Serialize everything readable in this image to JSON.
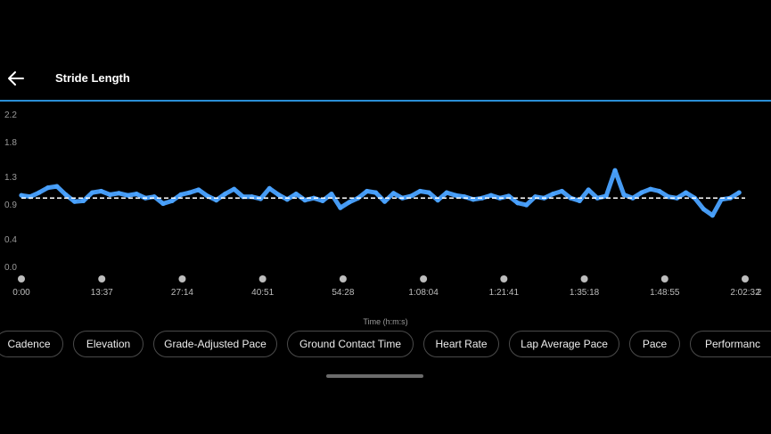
{
  "header": {
    "title": "Stride Length",
    "back_icon": "arrow-left-icon"
  },
  "colors": {
    "accent": "#2a8ed6",
    "series": "#4aa2ff",
    "background": "#000000",
    "average_line": "#ffffff"
  },
  "chart_data": {
    "type": "scatter",
    "title": "",
    "xlabel": "Time (h:m:s)",
    "ylabel": "",
    "ylim": [
      0,
      2.2
    ],
    "y_ticks": [
      "2.2",
      "1.8",
      "1.3",
      "0.9",
      "0.4",
      "0.0"
    ],
    "x_ticks": [
      "0:00",
      "13:37",
      "27:14",
      "40:51",
      "54:28",
      "1:08:04",
      "1:21:41",
      "1:35:18",
      "1:48:55",
      "2:02:32"
    ],
    "x_edge_label": "2",
    "x_range_minutes": [
      0,
      122.53
    ],
    "average": 1.0,
    "series": [
      {
        "x": [
          0,
          1.5,
          3,
          4.5,
          6,
          7.5,
          9,
          10.5,
          12,
          13.5,
          15,
          16.5,
          18,
          19.5,
          21,
          22.5,
          24,
          25.5,
          27,
          28.5,
          30,
          31.5,
          33,
          34.5,
          36,
          37.5,
          39,
          40.5,
          42,
          43.5,
          45,
          46.5,
          48,
          49.5,
          51,
          52.5,
          54,
          55.5,
          57,
          58.5,
          60,
          61.5,
          63,
          64.5,
          66,
          67.5,
          69,
          70.5,
          72,
          73.5,
          75,
          76.5,
          78,
          79.5,
          81,
          82.5,
          84,
          85.5,
          87,
          88.5,
          90,
          91.5,
          93,
          94.5,
          96,
          97.5,
          99,
          100.5,
          102,
          103.5,
          105,
          106.5,
          108,
          109.5,
          111,
          112.5,
          114,
          115.5,
          117,
          118.5,
          120,
          121.5
        ],
        "values": [
          1.04,
          1.02,
          1.08,
          1.15,
          1.17,
          1.05,
          0.95,
          0.96,
          1.08,
          1.1,
          1.05,
          1.07,
          1.04,
          1.06,
          1.0,
          1.02,
          0.92,
          0.96,
          1.05,
          1.08,
          1.12,
          1.03,
          0.97,
          1.06,
          1.13,
          1.02,
          1.02,
          0.99,
          1.14,
          1.05,
          0.98,
          1.06,
          0.97,
          1.0,
          0.96,
          1.06,
          0.86,
          0.94,
          1.0,
          1.1,
          1.08,
          0.95,
          1.07,
          1.0,
          1.03,
          1.1,
          1.08,
          0.97,
          1.08,
          1.04,
          1.02,
          0.98,
          1.0,
          1.04,
          1.0,
          1.03,
          0.93,
          0.9,
          1.02,
          1.0,
          1.06,
          1.1,
          1.0,
          0.96,
          1.12,
          1.0,
          1.03,
          1.4,
          1.05,
          1.0,
          1.08,
          1.13,
          1.1,
          1.02,
          1.0,
          1.08,
          1.0,
          0.84,
          0.75,
          0.98,
          1.0,
          1.08
        ]
      }
    ]
  },
  "metric_chips": [
    {
      "label": "Cadence",
      "selected": false
    },
    {
      "label": "Elevation",
      "selected": false
    },
    {
      "label": "Grade-Adjusted Pace",
      "selected": false
    },
    {
      "label": "Ground Contact Time",
      "selected": false
    },
    {
      "label": "Heart Rate",
      "selected": false
    },
    {
      "label": "Lap Average Pace",
      "selected": false
    },
    {
      "label": "Pace",
      "selected": false
    },
    {
      "label": "Performanc",
      "selected": false
    }
  ]
}
